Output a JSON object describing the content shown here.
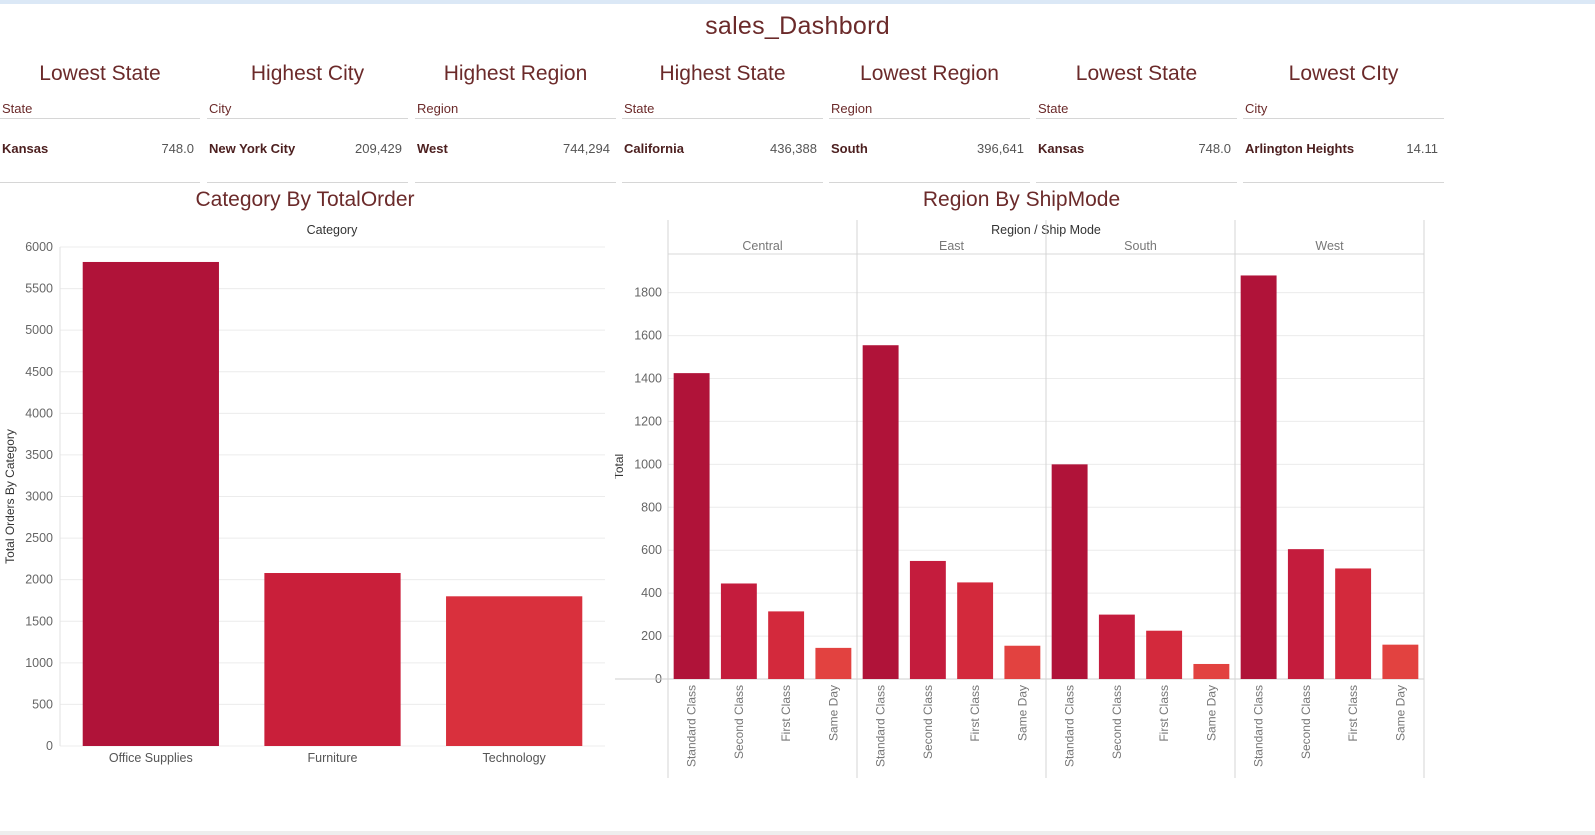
{
  "dashboard": {
    "title": "sales_Dashbord"
  },
  "kpis": [
    {
      "title": "Lowest State",
      "field": "State",
      "name": "Kansas",
      "value": "748.0"
    },
    {
      "title": "Highest City",
      "field": "City",
      "name": "New York City",
      "value": "209,429"
    },
    {
      "title": "Highest Region",
      "field": "Region",
      "name": "West",
      "value": "744,294"
    },
    {
      "title": "Highest State",
      "field": "State",
      "name": "California",
      "value": "436,388"
    },
    {
      "title": "Lowest Region",
      "field": "Region",
      "name": "South",
      "value": "396,641"
    },
    {
      "title": "Lowest State",
      "field": "State",
      "name": "Kansas",
      "value": "748.0"
    },
    {
      "title": "Lowest CIty",
      "field": "City",
      "name": "Arlington Heights",
      "value": "14.11"
    }
  ],
  "chart_data": [
    {
      "type": "bar",
      "title": "Category By TotalOrder",
      "column_header": "Category",
      "ylabel": "Total Orders By Category",
      "categories": [
        "Office Supplies",
        "Furniture",
        "Technology"
      ],
      "values": [
        5820,
        2080,
        1800
      ],
      "yticks": [
        0,
        500,
        1000,
        1500,
        2000,
        2500,
        3000,
        3500,
        4000,
        4500,
        5000,
        5500,
        6000
      ],
      "ylim": [
        0,
        6000
      ],
      "colors": [
        "#b01339",
        "#c91f3a",
        "#d9303d"
      ],
      "grid": true
    },
    {
      "type": "bar",
      "title": "Region By ShipMode",
      "column_header": "Region / Ship Mode",
      "ylabel": "Total",
      "regions": [
        "Central",
        "East",
        "South",
        "West"
      ],
      "categories": [
        "Standard Class",
        "Second Class",
        "First Class",
        "Same Day"
      ],
      "series": [
        {
          "region": "Central",
          "values": [
            1425,
            445,
            315,
            145
          ]
        },
        {
          "region": "East",
          "values": [
            1555,
            550,
            450,
            155
          ]
        },
        {
          "region": "South",
          "values": [
            1000,
            300,
            225,
            70
          ]
        },
        {
          "region": "West",
          "values": [
            1880,
            605,
            515,
            160
          ]
        }
      ],
      "yticks": [
        0,
        200,
        400,
        600,
        800,
        1000,
        1200,
        1400,
        1600,
        1800
      ],
      "ylim": [
        0,
        1980
      ],
      "colors": [
        "#b01339",
        "#c41c3d",
        "#d3293c",
        "#e24240"
      ],
      "grid": true
    }
  ]
}
